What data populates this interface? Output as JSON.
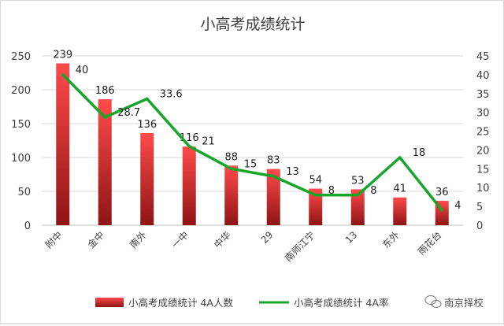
{
  "chart_data": {
    "type": "bar+line",
    "title": "小高考成绩统计",
    "categories": [
      "附中",
      "金中",
      "南外",
      "一中",
      "中华",
      "29",
      "南师江宁",
      "13",
      "东外",
      "雨花台"
    ],
    "series": [
      {
        "name": "小高考成绩统计 4A人数",
        "type": "bar",
        "axis": "left",
        "values": [
          239,
          186,
          136,
          116,
          88,
          83,
          54,
          53,
          41,
          36
        ]
      },
      {
        "name": "小高考成绩统计 4A率",
        "type": "line",
        "axis": "right",
        "values": [
          40,
          28.7,
          33.6,
          21,
          15,
          13,
          8,
          8,
          18,
          4
        ]
      }
    ],
    "y_left": {
      "min": 0,
      "max": 250,
      "ticks": [
        0,
        50,
        100,
        150,
        200,
        250
      ]
    },
    "y_right": {
      "min": 0,
      "max": 45,
      "ticks": [
        0,
        5,
        10,
        15,
        20,
        25,
        30,
        35,
        40,
        45
      ]
    },
    "grid": true,
    "legend_position": "bottom",
    "colors": {
      "bar_top": "#ff4a4a",
      "bar_bottom": "#8e1414",
      "line": "#16a62a"
    }
  },
  "watermark": {
    "text": "南京择校",
    "icon": "wechat-bubble-icon"
  }
}
